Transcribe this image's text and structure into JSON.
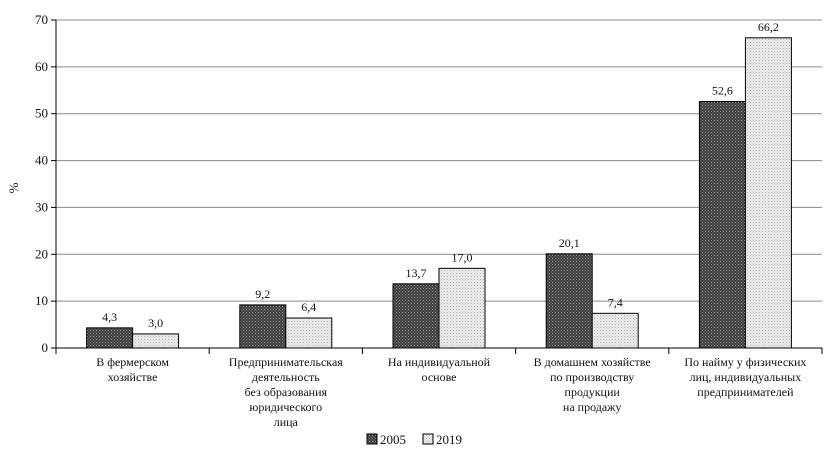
{
  "chart_data": {
    "type": "bar",
    "ylabel": "%",
    "ylim": [
      0,
      70
    ],
    "yticks": [
      "0",
      "10",
      "20",
      "30",
      "40",
      "50",
      "60",
      "70"
    ],
    "grid": true,
    "legend_position": "bottom-center",
    "categories": [
      [
        "В фермерском",
        "хозяйстве"
      ],
      [
        "Предпринимательская",
        "деятельность",
        "без образования",
        "юридического",
        "лица"
      ],
      [
        "На индивидуальной",
        "основе"
      ],
      [
        "В домашнем хозяйстве",
        "по производству",
        "продукции",
        "на продажу"
      ],
      [
        "По найму у физических",
        "лиц, индивидуальных",
        "предпринимателей"
      ]
    ],
    "series": [
      {
        "name": "2005",
        "values": [
          4.3,
          9.2,
          13.7,
          20.1,
          52.6
        ],
        "labels": [
          "4,3",
          "9,2",
          "13,7",
          "20,1",
          "52,6"
        ],
        "color": "#4a4a4a",
        "pattern": "dark-dotted"
      },
      {
        "name": "2019",
        "values": [
          3.0,
          6.4,
          17.0,
          7.4,
          66.2
        ],
        "labels": [
          "3,0",
          "6,4",
          "17,0",
          "7,4",
          "66,2"
        ],
        "color": "#e6e6e6",
        "pattern": "light-dotted"
      }
    ]
  }
}
